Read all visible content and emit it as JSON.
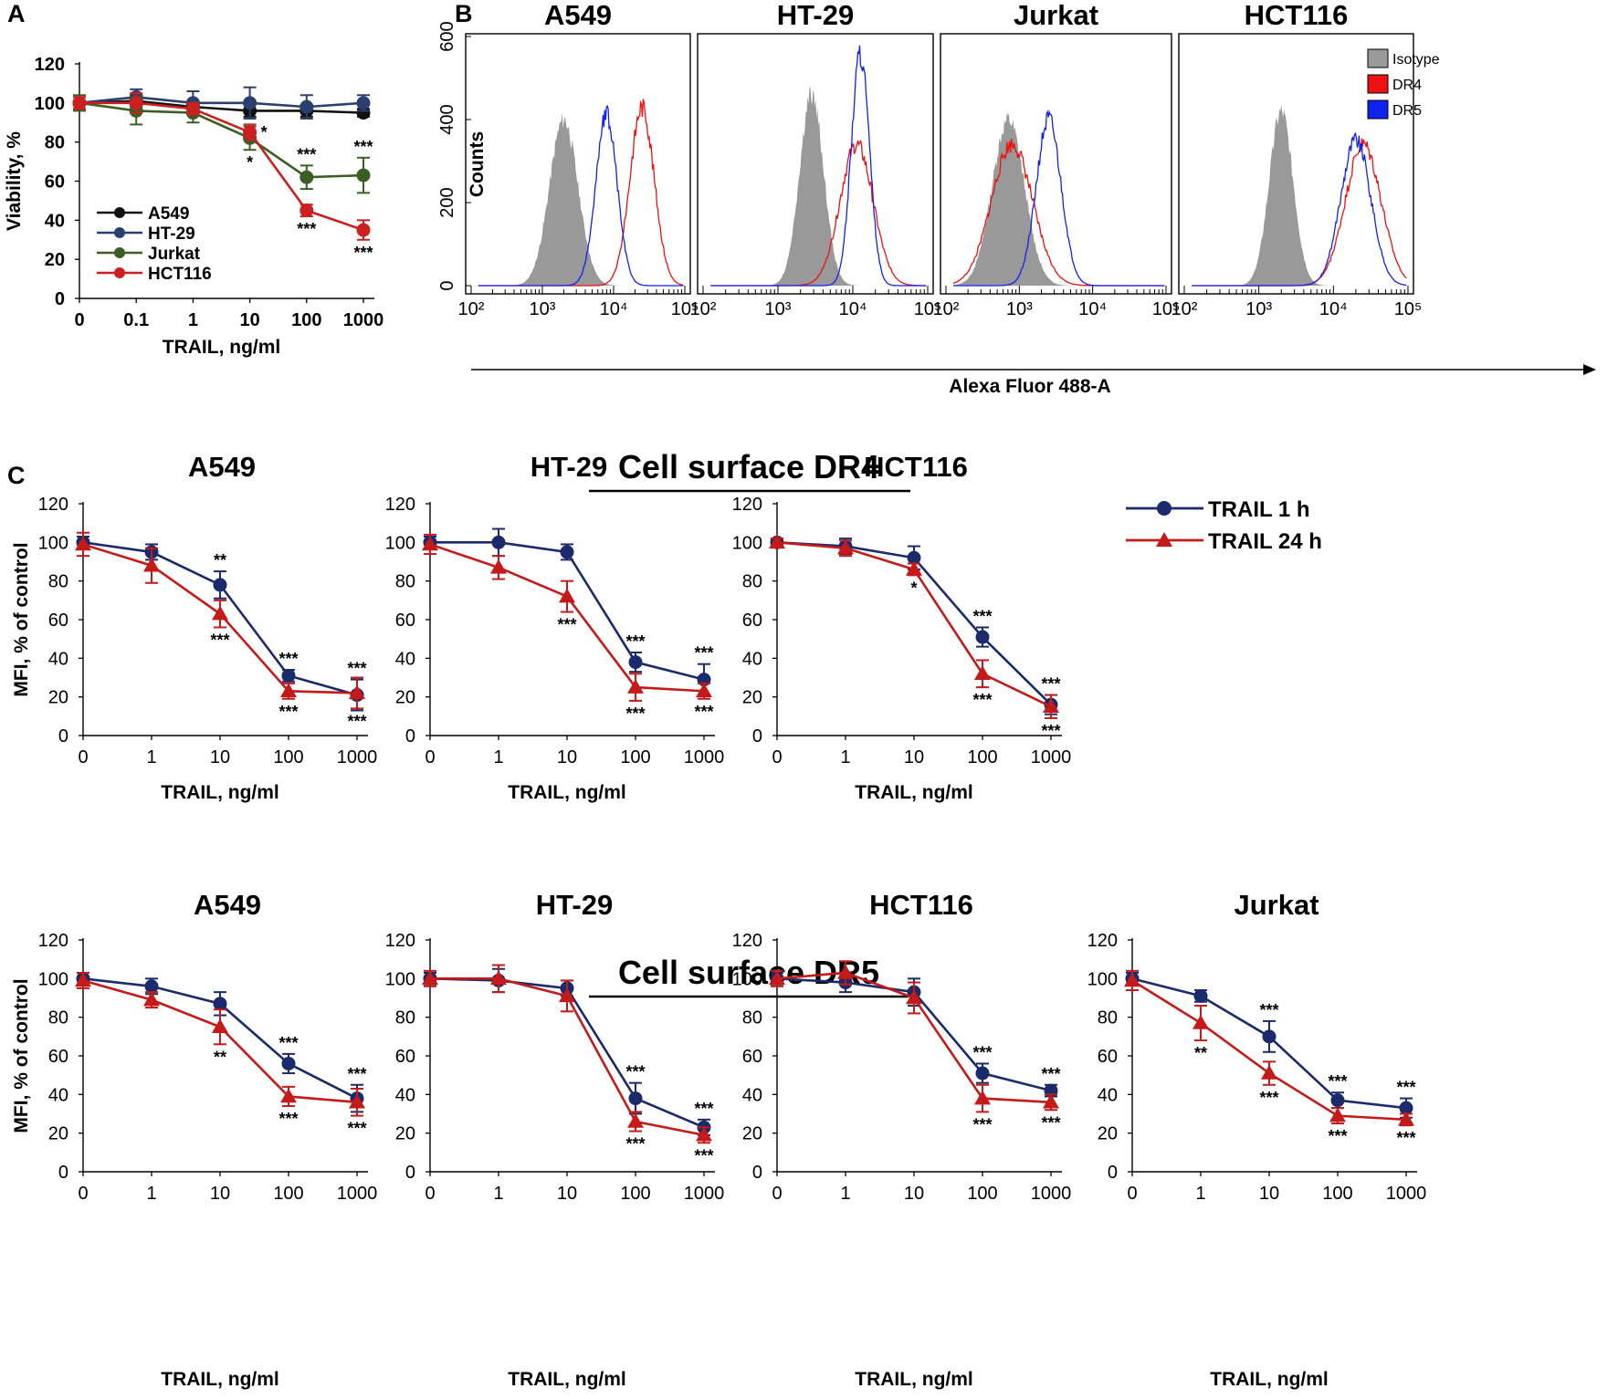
{
  "panels": {
    "A": "A",
    "B": "B",
    "C": "C"
  },
  "section_titles": {
    "dr4": "Cell surface DR4",
    "dr5": "Cell surface DR5"
  },
  "colors": {
    "A549": "#111111",
    "HT-29": "#2b3f6e",
    "Jurkat": "#3b5e24",
    "HCT116": "#cc1f1f",
    "trail_1h": "#1a2a6a",
    "trail_24h": "#c41a1a",
    "isotype": "#999999",
    "DR4": "#ee1111",
    "DR5": "#1122ee"
  },
  "chart_data": [
    {
      "id": "A",
      "type": "line",
      "categories": [
        "0",
        "0.1",
        "1",
        "10",
        "100",
        "1000"
      ],
      "xlabel": "TRAIL, ng/ml",
      "ylabel": "Viability, %",
      "ylim": [
        0,
        120
      ],
      "yticks": [
        "0",
        "20",
        "40",
        "60",
        "80",
        "100",
        "120"
      ],
      "legend": "bottom-left",
      "series": [
        {
          "name": "A549",
          "values": [
            100,
            101,
            98,
            96,
            96,
            95
          ],
          "err": [
            3,
            3,
            3,
            3,
            3,
            2
          ],
          "marker": "circle"
        },
        {
          "name": "HT-29",
          "values": [
            100,
            103,
            100,
            100,
            98,
            100
          ],
          "err": [
            3,
            4,
            6,
            8,
            6,
            4
          ],
          "marker": "circle"
        },
        {
          "name": "Jurkat",
          "values": [
            100,
            96,
            95,
            82,
            62,
            63
          ],
          "err": [
            4,
            7,
            5,
            6,
            6,
            9
          ],
          "marker": "circle"
        },
        {
          "name": "HCT116",
          "values": [
            100,
            100,
            97,
            85,
            45,
            35
          ],
          "err": [
            3,
            5,
            3,
            4,
            3,
            5
          ],
          "marker": "circle"
        }
      ],
      "annotations": [
        {
          "text": "*",
          "series": 3,
          "idx": 3,
          "pos": "right"
        },
        {
          "text": "*",
          "series": 2,
          "idx": 3,
          "pos": "below"
        },
        {
          "text": "***",
          "series": 2,
          "idx": 4,
          "pos": "above"
        },
        {
          "text": "***",
          "series": 2,
          "idx": 5,
          "pos": "above"
        },
        {
          "text": "***",
          "series": 3,
          "idx": 4,
          "pos": "below"
        },
        {
          "text": "***",
          "series": 3,
          "idx": 5,
          "pos": "below"
        }
      ]
    },
    {
      "id": "B",
      "type": "histogram",
      "title_cells": [
        "A549",
        "HT-29",
        "Jurkat",
        "HCT116"
      ],
      "xlabel": "Alexa Fluor 488-A",
      "ylabel": "Counts",
      "yticks": [
        "0",
        "200",
        "400",
        "600"
      ],
      "ylim": [
        0,
        600
      ],
      "xticks": [
        "10²",
        "10³",
        "10⁴",
        "10⁵"
      ],
      "xlim_log10": [
        2,
        5
      ],
      "legend_items": [
        "Isotype",
        "DR4",
        "DR5"
      ],
      "histograms": [
        {
          "cell": "A549",
          "isotype": {
            "peak_log": 3.3,
            "height": 400,
            "width": 0.2
          },
          "DR4": {
            "peak_log": 4.4,
            "height": 430,
            "width": 0.17
          },
          "DR5": {
            "peak_log": 3.9,
            "height": 410,
            "width": 0.15
          }
        },
        {
          "cell": "HT-29",
          "isotype": {
            "peak_log": 3.45,
            "height": 460,
            "width": 0.16
          },
          "DR4": {
            "peak_log": 4.05,
            "height": 340,
            "width": 0.22
          },
          "DR5": {
            "peak_log": 4.1,
            "height": 560,
            "width": 0.12
          }
        },
        {
          "cell": "Jurkat",
          "isotype": {
            "peak_log": 2.85,
            "height": 400,
            "width": 0.22
          },
          "DR4": {
            "peak_log": 2.9,
            "height": 340,
            "width": 0.28
          },
          "DR5": {
            "peak_log": 3.4,
            "height": 400,
            "width": 0.17
          }
        },
        {
          "cell": "HCT116",
          "isotype": {
            "peak_log": 3.3,
            "height": 420,
            "width": 0.16
          },
          "DR4": {
            "peak_log": 4.4,
            "height": 340,
            "width": 0.24
          },
          "DR5": {
            "peak_log": 4.3,
            "height": 355,
            "width": 0.2
          }
        }
      ]
    },
    {
      "id": "C-DR4-A549",
      "type": "line",
      "title": "A549",
      "categories": [
        "0",
        "1",
        "10",
        "100",
        "1000"
      ],
      "xlabel": "TRAIL, ng/ml",
      "ylabel": "MFI, % of control",
      "ylim": [
        0,
        120
      ],
      "yticks": [
        "0",
        "20",
        "40",
        "60",
        "80",
        "100",
        "120"
      ],
      "series": [
        {
          "name": "TRAIL   1 h",
          "values": [
            100,
            95,
            78,
            31,
            21
          ],
          "err": [
            3,
            4,
            7,
            3,
            8
          ],
          "marker": "circle"
        },
        {
          "name": "TRAIL 24 h",
          "values": [
            99,
            88,
            63,
            23,
            22
          ],
          "err": [
            6,
            9,
            7,
            4,
            8
          ],
          "marker": "triangle"
        }
      ],
      "annotations": [
        {
          "text": "**",
          "series": 0,
          "idx": 2,
          "pos": "above"
        },
        {
          "text": "***",
          "series": 1,
          "idx": 2,
          "pos": "below"
        },
        {
          "text": "***",
          "series": 0,
          "idx": 3,
          "pos": "above"
        },
        {
          "text": "***",
          "series": 1,
          "idx": 3,
          "pos": "below"
        },
        {
          "text": "***",
          "series": 0,
          "idx": 4,
          "pos": "above"
        },
        {
          "text": "***",
          "series": 1,
          "idx": 4,
          "pos": "below"
        }
      ]
    },
    {
      "id": "C-DR4-HT-29",
      "type": "line",
      "title": "HT-29",
      "categories": [
        "0",
        "1",
        "10",
        "100",
        "1000"
      ],
      "xlabel": "TRAIL, ng/ml",
      "ylabel": "",
      "ylim": [
        0,
        120
      ],
      "yticks": [
        "0",
        "20",
        "40",
        "60",
        "80",
        "100",
        "120"
      ],
      "series": [
        {
          "name": "TRAIL   1 h",
          "values": [
            100,
            100,
            95,
            38,
            29
          ],
          "err": [
            3,
            7,
            4,
            5,
            8
          ],
          "marker": "circle"
        },
        {
          "name": "TRAIL 24 h",
          "values": [
            99,
            87,
            72,
            25,
            23
          ],
          "err": [
            5,
            6,
            8,
            7,
            4
          ],
          "marker": "triangle"
        }
      ],
      "annotations": [
        {
          "text": "***",
          "series": 1,
          "idx": 2,
          "pos": "below"
        },
        {
          "text": "***",
          "series": 0,
          "idx": 3,
          "pos": "above"
        },
        {
          "text": "***",
          "series": 1,
          "idx": 3,
          "pos": "below"
        },
        {
          "text": "***",
          "series": 0,
          "idx": 4,
          "pos": "above"
        },
        {
          "text": "***",
          "series": 1,
          "idx": 4,
          "pos": "below"
        }
      ]
    },
    {
      "id": "C-DR4-HCT116",
      "type": "line",
      "title": "HCT116",
      "categories": [
        "0",
        "1",
        "10",
        "100",
        "1000"
      ],
      "xlabel": "TRAIL, ng/ml",
      "ylabel": "",
      "ylim": [
        0,
        120
      ],
      "yticks": [
        "0",
        "20",
        "40",
        "60",
        "80",
        "100",
        "120"
      ],
      "series": [
        {
          "name": "TRAIL   1 h",
          "values": [
            100,
            98,
            92,
            51,
            16
          ],
          "err": [
            2,
            4,
            6,
            5,
            5
          ],
          "marker": "circle"
        },
        {
          "name": "TRAIL 24 h",
          "values": [
            100,
            97,
            86,
            32,
            15
          ],
          "err": [
            2,
            4,
            3,
            7,
            6
          ],
          "marker": "triangle"
        }
      ],
      "annotations": [
        {
          "text": "*",
          "series": 1,
          "idx": 2,
          "pos": "below"
        },
        {
          "text": "***",
          "series": 0,
          "idx": 3,
          "pos": "above"
        },
        {
          "text": "***",
          "series": 1,
          "idx": 3,
          "pos": "below"
        },
        {
          "text": "***",
          "series": 0,
          "idx": 4,
          "pos": "above"
        },
        {
          "text": "***",
          "series": 1,
          "idx": 4,
          "pos": "below"
        }
      ]
    },
    {
      "id": "C-DR5-A549",
      "type": "line",
      "title": "A549",
      "categories": [
        "0",
        "1",
        "10",
        "100",
        "1000"
      ],
      "xlabel": "TRAIL, ng/ml",
      "ylabel": "MFI, % of control",
      "ylim": [
        0,
        120
      ],
      "yticks": [
        "0",
        "20",
        "40",
        "60",
        "80",
        "100",
        "120"
      ],
      "series": [
        {
          "name": "TRAIL   1 h",
          "values": [
            100,
            96,
            87,
            56,
            38
          ],
          "err": [
            3,
            4,
            6,
            5,
            7
          ],
          "marker": "circle"
        },
        {
          "name": "TRAIL 24 h",
          "values": [
            99,
            89,
            75,
            39,
            36
          ],
          "err": [
            4,
            4,
            9,
            5,
            7
          ],
          "marker": "triangle"
        }
      ],
      "annotations": [
        {
          "text": "**",
          "series": 1,
          "idx": 2,
          "pos": "below"
        },
        {
          "text": "***",
          "series": 0,
          "idx": 3,
          "pos": "above"
        },
        {
          "text": "***",
          "series": 1,
          "idx": 3,
          "pos": "below"
        },
        {
          "text": "***",
          "series": 0,
          "idx": 4,
          "pos": "above"
        },
        {
          "text": "***",
          "series": 1,
          "idx": 4,
          "pos": "below"
        }
      ]
    },
    {
      "id": "C-DR5-HT-29",
      "type": "line",
      "title": "HT-29",
      "categories": [
        "0",
        "1",
        "10",
        "100",
        "1000"
      ],
      "xlabel": "TRAIL, ng/ml",
      "ylabel": "",
      "ylim": [
        0,
        120
      ],
      "yticks": [
        "0",
        "20",
        "40",
        "60",
        "80",
        "100",
        "120"
      ],
      "series": [
        {
          "name": "TRAIL   1 h",
          "values": [
            100,
            99,
            95,
            38,
            23
          ],
          "err": [
            3,
            6,
            4,
            8,
            4
          ],
          "marker": "circle"
        },
        {
          "name": "TRAIL 24 h",
          "values": [
            100,
            100,
            91,
            26,
            19
          ],
          "err": [
            4,
            7,
            8,
            5,
            4
          ],
          "marker": "triangle"
        }
      ],
      "annotations": [
        {
          "text": "***",
          "series": 0,
          "idx": 3,
          "pos": "above"
        },
        {
          "text": "***",
          "series": 1,
          "idx": 3,
          "pos": "below"
        },
        {
          "text": "***",
          "series": 0,
          "idx": 4,
          "pos": "above"
        },
        {
          "text": "***",
          "series": 1,
          "idx": 4,
          "pos": "below"
        }
      ]
    },
    {
      "id": "C-DR5-HCT116",
      "type": "line",
      "title": "HCT116",
      "categories": [
        "0",
        "1",
        "10",
        "100",
        "1000"
      ],
      "xlabel": "TRAIL, ng/ml",
      "ylabel": "",
      "ylim": [
        0,
        120
      ],
      "yticks": [
        "0",
        "20",
        "40",
        "60",
        "80",
        "100",
        "120"
      ],
      "series": [
        {
          "name": "TRAIL   1 h",
          "values": [
            100,
            98,
            93,
            51,
            42
          ],
          "err": [
            3,
            5,
            7,
            5,
            3
          ],
          "marker": "circle"
        },
        {
          "name": "TRAIL 24 h",
          "values": [
            100,
            103,
            90,
            38,
            36
          ],
          "err": [
            4,
            6,
            8,
            7,
            4
          ],
          "marker": "triangle"
        }
      ],
      "annotations": [
        {
          "text": "***",
          "series": 0,
          "idx": 3,
          "pos": "above"
        },
        {
          "text": "***",
          "series": 1,
          "idx": 3,
          "pos": "below"
        },
        {
          "text": "***",
          "series": 0,
          "idx": 4,
          "pos": "above"
        },
        {
          "text": "***",
          "series": 1,
          "idx": 4,
          "pos": "below"
        }
      ]
    },
    {
      "id": "C-DR5-Jurkat",
      "type": "line",
      "title": "Jurkat",
      "categories": [
        "0",
        "1",
        "10",
        "100",
        "1000"
      ],
      "xlabel": "TRAIL, ng/ml",
      "ylabel": "",
      "ylim": [
        0,
        120
      ],
      "yticks": [
        "0",
        "20",
        "40",
        "60",
        "80",
        "100",
        "120"
      ],
      "series": [
        {
          "name": "TRAIL   1 h",
          "values": [
            100,
            91,
            70,
            37,
            33
          ],
          "err": [
            3,
            3,
            8,
            4,
            5
          ],
          "marker": "circle"
        },
        {
          "name": "TRAIL 24 h",
          "values": [
            99,
            77,
            51,
            29,
            27
          ],
          "err": [
            5,
            9,
            6,
            4,
            3
          ],
          "marker": "triangle"
        }
      ],
      "annotations": [
        {
          "text": "**",
          "series": 1,
          "idx": 1,
          "pos": "below"
        },
        {
          "text": "***",
          "series": 0,
          "idx": 2,
          "pos": "above"
        },
        {
          "text": "***",
          "series": 1,
          "idx": 2,
          "pos": "below"
        },
        {
          "text": "***",
          "series": 0,
          "idx": 3,
          "pos": "above"
        },
        {
          "text": "***",
          "series": 1,
          "idx": 3,
          "pos": "below"
        },
        {
          "text": "***",
          "series": 0,
          "idx": 4,
          "pos": "above"
        },
        {
          "text": "***",
          "series": 1,
          "idx": 4,
          "pos": "below"
        }
      ]
    }
  ],
  "legend_C": {
    "items": [
      "TRAIL   1 h",
      "TRAIL 24 h"
    ]
  }
}
